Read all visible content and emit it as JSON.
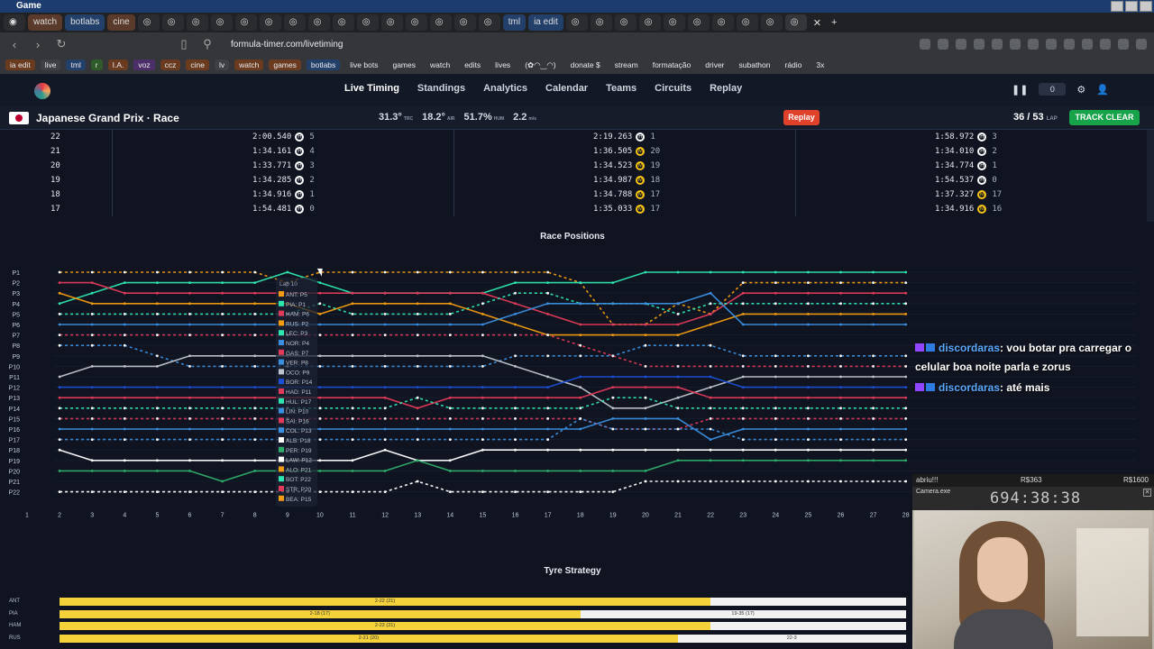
{
  "window": {
    "title": "Game"
  },
  "browser_tabs": [
    "watch",
    "botlabs",
    "cine",
    "tml",
    "ia edit"
  ],
  "address": {
    "url": "formula-timer.com/livetiming"
  },
  "bookmarks": [
    "ia edit",
    "live",
    "tml",
    "r",
    "I.A.",
    "voz",
    "ccz",
    "cine",
    "lv",
    "watch",
    "games",
    "botlabs",
    "live bots",
    "games",
    "watch",
    "edits",
    "lives",
    "(✿◠‿◠)",
    "donate $",
    "stream",
    "formatação",
    "driver",
    "subathon",
    "rádio",
    "3x"
  ],
  "nav": {
    "items": [
      "Live Timing",
      "Standings",
      "Analytics",
      "Calendar",
      "Teams",
      "Circuits",
      "Replay"
    ],
    "counter": "0"
  },
  "race": {
    "title": "Japanese Grand Prix · Race",
    "track_temp": "31.3°",
    "track_temp_unit": "TRC",
    "air_temp": "18.2°",
    "air_temp_unit": "AIR",
    "humidity": "51.7%",
    "humidity_unit": "HUM",
    "wind": "2.2",
    "wind_unit": "m/s",
    "replay_label": "Replay",
    "lap_current": "36 / 53",
    "lap_unit": "LAP",
    "track_status": "TRACK CLEAR"
  },
  "lap_table": [
    {
      "lap": "22",
      "cells": [
        {
          "t": "2:00.540",
          "c": "H",
          "p": "5"
        },
        {
          "t": "2:19.263",
          "c": "H",
          "p": "1"
        },
        {
          "t": "1:58.972",
          "c": "H",
          "p": "3"
        }
      ]
    },
    {
      "lap": "21",
      "cells": [
        {
          "t": "1:34.161",
          "c": "H",
          "p": "4"
        },
        {
          "t": "1:36.505",
          "c": "M",
          "p": "20"
        },
        {
          "t": "1:34.010",
          "c": "H",
          "p": "2"
        }
      ]
    },
    {
      "lap": "20",
      "cells": [
        {
          "t": "1:33.771",
          "c": "H",
          "p": "3"
        },
        {
          "t": "1:34.523",
          "c": "M",
          "p": "19"
        },
        {
          "t": "1:34.774",
          "c": "H",
          "p": "1"
        }
      ]
    },
    {
      "lap": "19",
      "cells": [
        {
          "t": "1:34.285",
          "c": "H",
          "p": "2"
        },
        {
          "t": "1:34.987",
          "c": "M",
          "p": "18"
        },
        {
          "t": "1:54.537",
          "c": "H",
          "p": "0"
        }
      ]
    },
    {
      "lap": "18",
      "cells": [
        {
          "t": "1:34.916",
          "c": "H",
          "p": "1"
        },
        {
          "t": "1:34.788",
          "c": "M",
          "p": "17"
        },
        {
          "t": "1:37.327",
          "c": "M",
          "p": "17"
        }
      ]
    },
    {
      "lap": "17",
      "cells": [
        {
          "t": "1:54.481",
          "c": "H",
          "p": "0"
        },
        {
          "t": "1:35.033",
          "c": "M",
          "p": "17"
        },
        {
          "t": "1:34.916",
          "c": "M",
          "p": "16"
        }
      ]
    }
  ],
  "positions": {
    "title": "Race Positions",
    "y_labels": [
      "P1",
      "P2",
      "P3",
      "P4",
      "P5",
      "P6",
      "P7",
      "P8",
      "P9",
      "P10",
      "P11",
      "P12",
      "P13",
      "P14",
      "P15",
      "P16",
      "P17",
      "P18",
      "P19",
      "P20",
      "P21",
      "P22"
    ],
    "x_labels": [
      "1",
      "2",
      "3",
      "4",
      "5",
      "6",
      "7",
      "8",
      "9",
      "10",
      "11",
      "12",
      "13",
      "14",
      "15",
      "16",
      "17",
      "18",
      "19",
      "20",
      "21",
      "22",
      "23",
      "24",
      "25",
      "26",
      "27",
      "28"
    ],
    "tooltip_title": "Lap 10",
    "tooltip_rows": [
      "ANT: P5",
      "PIA: P1",
      "HAM: P6",
      "RUS: P2",
      "LEC: P3",
      "NOR: P4",
      "GAS: P7",
      "VER: P8",
      "OCO: P9",
      "BOR: P14",
      "HAD: P11",
      "HUL: P17",
      "LIN: P10",
      "SAI: P16",
      "COL: P13",
      "ALB: P18",
      "PER: P19",
      "LAW: P12",
      "ALO: P21",
      "BOT: P22",
      "STR: P20",
      "BEA: P15"
    ]
  },
  "chart_data": {
    "type": "line",
    "title": "Race Positions",
    "x": [
      2,
      3,
      4,
      5,
      6,
      7,
      8,
      9,
      10,
      11,
      12,
      13,
      14,
      15,
      16,
      17,
      18,
      19,
      20,
      21,
      22,
      23,
      24,
      25,
      26,
      27,
      28
    ],
    "ylim": [
      22,
      1
    ],
    "series": [
      {
        "color": "#f39c12",
        "dashed": true,
        "values": [
          1,
          1,
          1,
          1,
          1,
          1,
          1,
          2,
          1,
          1,
          1,
          1,
          1,
          1,
          1,
          1,
          2,
          6,
          6,
          4,
          5,
          2,
          2,
          2,
          2,
          2,
          2
        ]
      },
      {
        "color": "#2ee6b0",
        "dashed": false,
        "values": [
          4,
          3,
          2,
          2,
          2,
          2,
          2,
          1,
          2,
          3,
          3,
          3,
          3,
          3,
          2,
          2,
          2,
          2,
          1,
          1,
          1,
          1,
          1,
          1,
          1,
          1,
          1
        ]
      },
      {
        "color": "#e23a5a",
        "dashed": false,
        "values": [
          2,
          2,
          3,
          3,
          3,
          3,
          3,
          3,
          3,
          3,
          3,
          3,
          3,
          3,
          4,
          5,
          6,
          6,
          6,
          6,
          5,
          3,
          3,
          3,
          3,
          3,
          3
        ]
      },
      {
        "color": "#f39c12",
        "dashed": false,
        "values": [
          3,
          4,
          4,
          4,
          4,
          4,
          4,
          4,
          5,
          4,
          4,
          4,
          4,
          5,
          6,
          7,
          7,
          7,
          7,
          7,
          6,
          5,
          5,
          5,
          5,
          5,
          5
        ]
      },
      {
        "color": "#2ee6b0",
        "dashed": true,
        "values": [
          5,
          5,
          5,
          5,
          5,
          5,
          5,
          5,
          4,
          5,
          5,
          5,
          5,
          4,
          3,
          3,
          4,
          4,
          4,
          5,
          4,
          4,
          4,
          4,
          4,
          4,
          4
        ]
      },
      {
        "color": "#3b8fe0",
        "dashed": false,
        "values": [
          6,
          6,
          6,
          6,
          6,
          6,
          6,
          6,
          6,
          6,
          6,
          6,
          6,
          6,
          5,
          4,
          4,
          4,
          4,
          4,
          3,
          6,
          6,
          6,
          6,
          6,
          6
        ]
      },
      {
        "color": "#e23a5a",
        "dashed": true,
        "values": [
          7,
          7,
          7,
          7,
          7,
          7,
          7,
          7,
          7,
          7,
          7,
          7,
          7,
          7,
          7,
          7,
          8,
          9,
          10,
          10,
          10,
          10,
          10,
          10,
          10,
          10,
          10
        ]
      },
      {
        "color": "#3b8fe0",
        "dashed": true,
        "values": [
          8,
          8,
          8,
          9,
          10,
          10,
          10,
          10,
          10,
          10,
          10,
          10,
          10,
          10,
          9,
          9,
          9,
          9,
          8,
          8,
          8,
          9,
          9,
          9,
          9,
          9,
          9
        ]
      },
      {
        "color": "#c0c4cc",
        "dashed": false,
        "values": [
          11,
          10,
          10,
          10,
          9,
          9,
          9,
          9,
          9,
          9,
          9,
          9,
          9,
          9,
          10,
          11,
          12,
          14,
          14,
          13,
          12,
          11,
          11,
          11,
          11,
          11,
          11
        ]
      },
      {
        "color": "#1e4fd8",
        "dashed": false,
        "values": [
          12,
          12,
          12,
          12,
          12,
          12,
          12,
          12,
          12,
          12,
          12,
          12,
          12,
          12,
          12,
          12,
          11,
          11,
          11,
          11,
          11,
          12,
          12,
          12,
          12,
          12,
          12
        ]
      },
      {
        "color": "#e23a5a",
        "dashed": false,
        "values": [
          13,
          13,
          13,
          13,
          13,
          13,
          13,
          13,
          13,
          13,
          13,
          14,
          13,
          13,
          13,
          13,
          13,
          12,
          12,
          12,
          13,
          13,
          13,
          13,
          13,
          13,
          13
        ]
      },
      {
        "color": "#2ee6b0",
        "dashed": true,
        "values": [
          14,
          14,
          14,
          14,
          14,
          14,
          14,
          14,
          14,
          14,
          14,
          13,
          14,
          14,
          14,
          14,
          14,
          13,
          13,
          14,
          14,
          14,
          14,
          14,
          14,
          14,
          14
        ]
      },
      {
        "color": "#3b8fe0",
        "dashed": false,
        "values": [
          16,
          16,
          16,
          16,
          16,
          16,
          16,
          16,
          16,
          16,
          16,
          16,
          16,
          16,
          16,
          16,
          16,
          15,
          15,
          15,
          17,
          16,
          16,
          16,
          16,
          16,
          16
        ]
      },
      {
        "color": "#e23a5a",
        "dashed": true,
        "values": [
          15,
          15,
          15,
          15,
          15,
          15,
          15,
          15,
          15,
          15,
          15,
          15,
          15,
          15,
          15,
          15,
          15,
          16,
          16,
          16,
          15,
          15,
          15,
          15,
          15,
          15,
          15
        ]
      },
      {
        "color": "#3b8fe0",
        "dashed": true,
        "values": [
          17,
          17,
          17,
          17,
          17,
          17,
          17,
          17,
          17,
          17,
          17,
          17,
          17,
          17,
          17,
          17,
          15,
          16,
          16,
          16,
          16,
          17,
          17,
          17,
          17,
          17,
          17
        ]
      },
      {
        "color": "#ffffff",
        "dashed": false,
        "values": [
          18,
          19,
          19,
          19,
          19,
          19,
          19,
          19,
          19,
          19,
          18,
          19,
          19,
          18,
          18,
          18,
          18,
          18,
          18,
          18,
          18,
          18,
          18,
          18,
          18,
          18,
          18
        ]
      },
      {
        "color": "#2eae6a",
        "dashed": false,
        "values": [
          20,
          20,
          20,
          20,
          20,
          21,
          20,
          20,
          20,
          20,
          20,
          19,
          20,
          20,
          20,
          20,
          20,
          20,
          20,
          19,
          19,
          19,
          19,
          19,
          19,
          19,
          19
        ]
      },
      {
        "color": "#ffffff",
        "dashed": true,
        "values": [
          22,
          22,
          22,
          22,
          22,
          22,
          22,
          22,
          22,
          22,
          22,
          21,
          22,
          22,
          22,
          22,
          22,
          22,
          21,
          21,
          21,
          21,
          21,
          21,
          21,
          21,
          21
        ]
      }
    ]
  },
  "tyres": {
    "title": "Tyre Strategy",
    "rows": [
      {
        "driver": "ANT",
        "stints": [
          {
            "label": "2-22 (21)",
            "c": "M",
            "from": 2,
            "to": 22
          },
          {
            "label": "",
            "c": "H",
            "from": 22,
            "to": 28
          }
        ]
      },
      {
        "driver": "PIA",
        "stints": [
          {
            "label": "2-18 (17)",
            "c": "M",
            "from": 2,
            "to": 18
          },
          {
            "label": "19-35 (17)",
            "c": "H",
            "from": 18,
            "to": 28
          }
        ]
      },
      {
        "driver": "HAM",
        "stints": [
          {
            "label": "2-22 (21)",
            "c": "M",
            "from": 2,
            "to": 22
          },
          {
            "label": "",
            "c": "H",
            "from": 22,
            "to": 28
          }
        ]
      },
      {
        "driver": "RUS",
        "stints": [
          {
            "label": "2-21 (20)",
            "c": "M",
            "from": 2,
            "to": 21
          },
          {
            "label": "22-3",
            "c": "H",
            "from": 21,
            "to": 28
          }
        ]
      }
    ]
  },
  "chat": [
    {
      "user": "discordaras",
      "text": ": vou botar pra carregar o celular boa noite parla e zorus"
    },
    {
      "user": "discordaras",
      "text": ": até mais"
    }
  ],
  "overlay": {
    "left": "abriu!!!",
    "mid": "R$363",
    "right": "R$1600",
    "cam_name": "Camera.exe",
    "timer": "694:38:38"
  }
}
